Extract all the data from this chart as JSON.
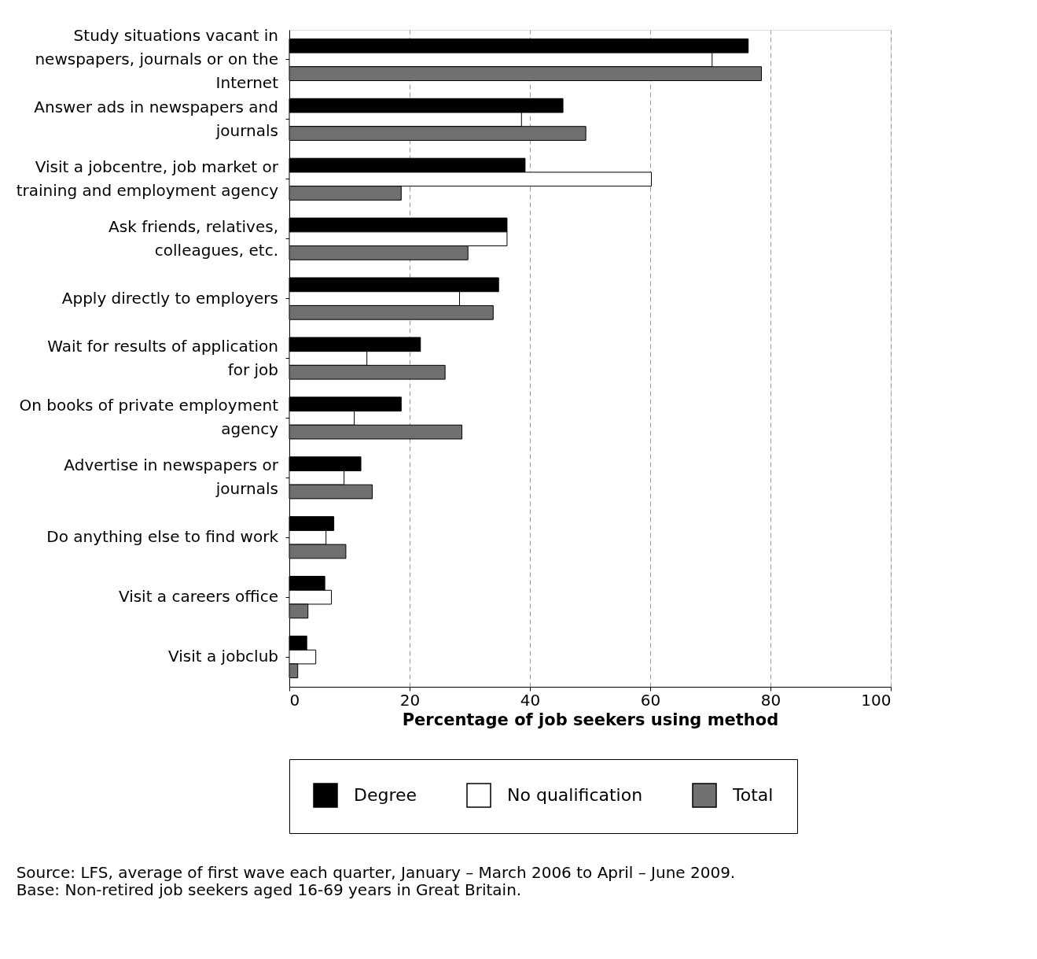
{
  "chart_data": {
    "type": "bar",
    "orientation": "horizontal",
    "xlabel": "Percentage of job seekers using method",
    "categories": [
      "Study situations vacant in newspapers, journals or on the Internet",
      "Answer ads in newspapers and journals",
      "Visit a jobcentre, job market or training and employment agency",
      "Ask friends, relatives, colleagues, etc.",
      "Apply directly to employers",
      "Wait for results of application for job",
      "On books of private employment agency",
      "Advertise in newspapers or journals",
      "Do anything else to find work",
      "Visit a careers office",
      "Visit a jobclub"
    ],
    "series": [
      {
        "name": "Degree",
        "color": "#000000",
        "values": [
          76.3,
          45.5,
          39.2,
          36.2,
          34.8,
          21.8,
          18.6,
          11.9,
          7.4,
          5.9,
          2.9
        ]
      },
      {
        "name": "No qualification",
        "color": "#ffffff",
        "values": [
          70.3,
          38.6,
          60.2,
          36.2,
          28.3,
          12.9,
          10.8,
          9.1,
          6.1,
          7.0,
          4.4
        ]
      },
      {
        "name": "Total",
        "color": "#707070",
        "values": [
          78.5,
          49.3,
          18.6,
          29.7,
          33.9,
          25.9,
          28.7,
          13.8,
          9.4,
          3.1,
          1.4
        ]
      }
    ],
    "xlim": [
      0,
      100
    ],
    "xticks": [
      0,
      20,
      40,
      60,
      80,
      100
    ],
    "grid": "x",
    "legend": "bottom",
    "annotations": [
      "Source: LFS, average of first wave each quarter, January – March 2006 to April – June 2009.",
      "Base: Non-retired job seekers aged 16-69 years in Great Britain."
    ]
  }
}
